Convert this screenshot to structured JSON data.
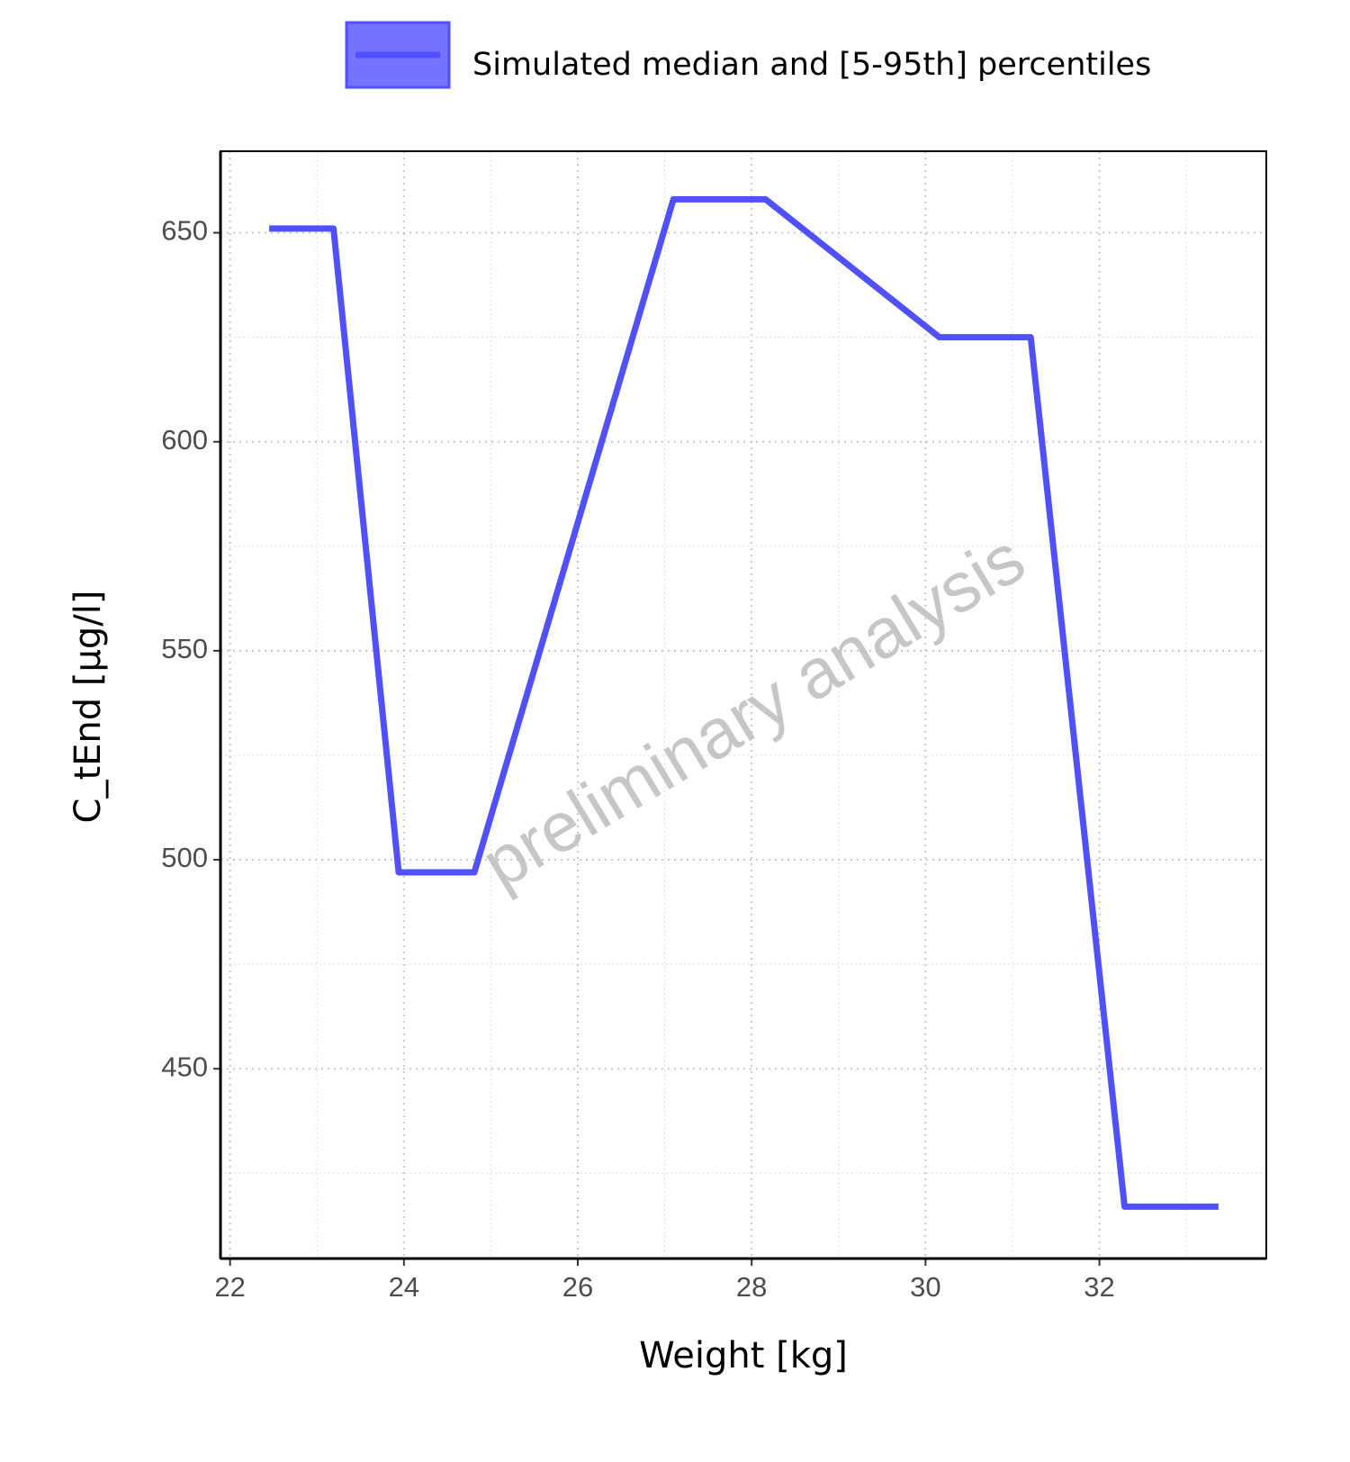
{
  "chart_data": {
    "type": "line",
    "x_label": "Weight [kg]",
    "y_label": "C_tEnd [µg/l]",
    "watermark": "preliminary analysis",
    "x": [
      22.45,
      23.19,
      23.94,
      24.81,
      27.1,
      28.16,
      30.16,
      31.21,
      32.29,
      33.37
    ],
    "series": [
      {
        "name": "Simulated median and [5-95th] percentiles",
        "color": "#5050ff",
        "values": [
          651,
          651,
          497,
          497,
          658,
          658,
          625,
          625,
          417,
          417
        ]
      }
    ],
    "xlim": [
      21.89,
      33.92
    ],
    "xticks": [
      22,
      24,
      26,
      28,
      30,
      32
    ],
    "ylim": [
      404.6,
      669.5
    ],
    "yticks": [
      450,
      500,
      550,
      600,
      650
    ],
    "grid": true,
    "legend": "top"
  }
}
